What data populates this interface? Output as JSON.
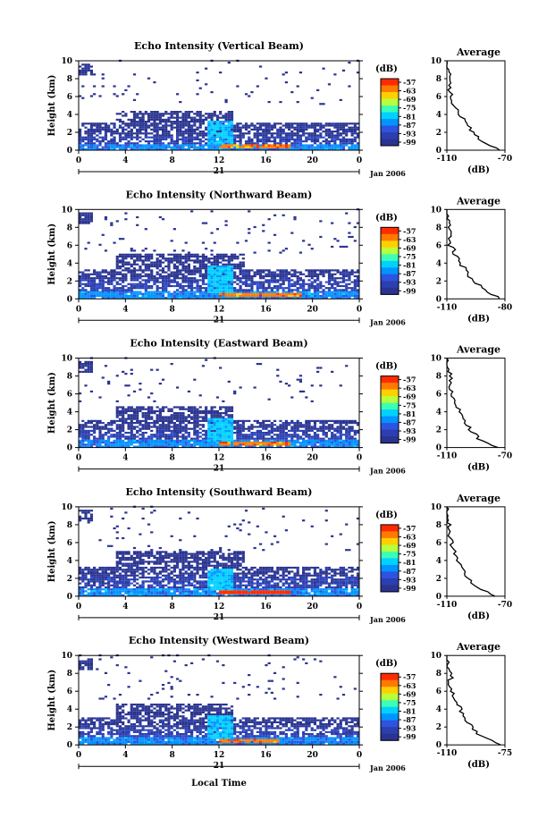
{
  "colorbar": {
    "unit_label": "(dB)",
    "ticks": [
      "-57",
      "-63",
      "-69",
      "-75",
      "-81",
      "-87",
      "-93",
      "-99"
    ],
    "colors": [
      "#ff2b00",
      "#ff7a00",
      "#ffd000",
      "#b8ff3c",
      "#3cffb4",
      "#00d2ff",
      "#0094ff",
      "#2f52e0",
      "#2b3fb0",
      "#2a3490"
    ]
  },
  "x_axis": {
    "ticks": [
      "0",
      "4",
      "8",
      "12",
      "16",
      "20",
      "0"
    ],
    "day_label": "21",
    "date_label": "Jan 2006",
    "bottom_label": "Local Time"
  },
  "y_axis": {
    "label": "Height (km)",
    "ticks": [
      "0",
      "2",
      "4",
      "6",
      "8",
      "10"
    ]
  },
  "chart_data": [
    {
      "type": "heatmap",
      "title": "Echo Intensity (Vertical Beam)",
      "xlabel": "",
      "ylabel": "Height (km)",
      "xlim": [
        0,
        24
      ],
      "ylim": [
        0,
        10
      ],
      "layers": [
        {
          "y0": 0,
          "y1": 0.6,
          "x0": 0,
          "x1": 24,
          "db": -85
        },
        {
          "y0": 0.6,
          "y1": 1.5,
          "x0": 0,
          "x1": 24,
          "db": -93
        },
        {
          "y0": 1.5,
          "y1": 3.0,
          "x0": 0,
          "x1": 24,
          "db": -97
        },
        {
          "y0": 3.0,
          "y1": 4.2,
          "x0": 3,
          "x1": 13,
          "db": -98
        },
        {
          "y0": 0.5,
          "y1": 3.2,
          "x0": 11,
          "x1": 13,
          "db": -81
        },
        {
          "y0": 0.2,
          "y1": 0.5,
          "x0": 12,
          "x1": 18,
          "db": -63
        }
      ],
      "average": {
        "xlim": [
          -110,
          -70
        ],
        "xticks": [
          "-110",
          "-70"
        ],
        "xlabel": "(dB)",
        "title": "Average",
        "profile": [
          [
            0,
            -74
          ],
          [
            1,
            -86
          ],
          [
            2,
            -92
          ],
          [
            3,
            -97
          ],
          [
            4,
            -101
          ],
          [
            5,
            -105
          ],
          [
            6,
            -107
          ],
          [
            7,
            -108
          ],
          [
            8,
            -107
          ],
          [
            9,
            -110
          ],
          [
            10,
            -110
          ]
        ]
      }
    },
    {
      "type": "heatmap",
      "title": "Echo Intensity (Northward Beam)",
      "xlabel": "",
      "ylabel": "Height (km)",
      "xlim": [
        0,
        24
      ],
      "ylim": [
        0,
        10
      ],
      "layers": [
        {
          "y0": 0,
          "y1": 0.8,
          "x0": 0,
          "x1": 24,
          "db": -85
        },
        {
          "y0": 0.8,
          "y1": 2.0,
          "x0": 0,
          "x1": 24,
          "db": -93
        },
        {
          "y0": 2.0,
          "y1": 3.2,
          "x0": 0,
          "x1": 24,
          "db": -97
        },
        {
          "y0": 3.2,
          "y1": 5.0,
          "x0": 3,
          "x1": 14,
          "db": -98
        },
        {
          "y0": 0.5,
          "y1": 3.6,
          "x0": 11,
          "x1": 13,
          "db": -81
        },
        {
          "y0": 0.2,
          "y1": 0.6,
          "x0": 12,
          "x1": 19,
          "db": -63
        }
      ],
      "average": {
        "xlim": [
          -110,
          -80
        ],
        "xticks": [
          "-110",
          "-80"
        ],
        "xlabel": "(dB)",
        "title": "Average",
        "profile": [
          [
            0,
            -82
          ],
          [
            1,
            -90
          ],
          [
            2,
            -96
          ],
          [
            3,
            -100
          ],
          [
            4,
            -103
          ],
          [
            5,
            -106
          ],
          [
            6,
            -108
          ],
          [
            7,
            -109
          ],
          [
            8,
            -108
          ],
          [
            9,
            -110
          ],
          [
            10,
            -110
          ]
        ]
      }
    },
    {
      "type": "heatmap",
      "title": "Echo Intensity (Eastward Beam)",
      "xlabel": "",
      "ylabel": "Height (km)",
      "xlim": [
        0,
        24
      ],
      "ylim": [
        0,
        10
      ],
      "layers": [
        {
          "y0": 0,
          "y1": 0.7,
          "x0": 0,
          "x1": 24,
          "db": -85
        },
        {
          "y0": 0.7,
          "y1": 1.8,
          "x0": 0,
          "x1": 24,
          "db": -93
        },
        {
          "y0": 1.8,
          "y1": 3.0,
          "x0": 0,
          "x1": 24,
          "db": -97
        },
        {
          "y0": 3.0,
          "y1": 4.5,
          "x0": 3,
          "x1": 13,
          "db": -98
        },
        {
          "y0": 0.5,
          "y1": 3.3,
          "x0": 11,
          "x1": 13,
          "db": -81
        },
        {
          "y0": 0.2,
          "y1": 0.5,
          "x0": 12,
          "x1": 18,
          "db": -63
        }
      ],
      "average": {
        "xlim": [
          -110,
          -70
        ],
        "xticks": [
          "-110",
          "-70"
        ],
        "xlabel": "(dB)",
        "title": "Average",
        "profile": [
          [
            0,
            -75
          ],
          [
            1,
            -88
          ],
          [
            2,
            -94
          ],
          [
            3,
            -98
          ],
          [
            4,
            -101
          ],
          [
            5,
            -104
          ],
          [
            6,
            -107
          ],
          [
            7,
            -108
          ],
          [
            8,
            -107
          ],
          [
            9,
            -110
          ],
          [
            10,
            -110
          ]
        ]
      }
    },
    {
      "type": "heatmap",
      "title": "Echo Intensity (Southward Beam)",
      "xlabel": "",
      "ylabel": "Height (km)",
      "xlim": [
        0,
        24
      ],
      "ylim": [
        0,
        10
      ],
      "layers": [
        {
          "y0": 0,
          "y1": 0.8,
          "x0": 0,
          "x1": 24,
          "db": -85
        },
        {
          "y0": 0.8,
          "y1": 2.0,
          "x0": 0,
          "x1": 24,
          "db": -93
        },
        {
          "y0": 2.0,
          "y1": 3.2,
          "x0": 0,
          "x1": 24,
          "db": -97
        },
        {
          "y0": 3.2,
          "y1": 5.0,
          "x0": 3,
          "x1": 14,
          "db": -98
        },
        {
          "y0": 0.5,
          "y1": 3.0,
          "x0": 11,
          "x1": 13,
          "db": -81
        },
        {
          "y0": 0.2,
          "y1": 0.6,
          "x0": 12,
          "x1": 18,
          "db": -57
        }
      ],
      "average": {
        "xlim": [
          -110,
          -70
        ],
        "xticks": [
          "-110",
          "-70"
        ],
        "xlabel": "(dB)",
        "title": "Average",
        "profile": [
          [
            0,
            -76
          ],
          [
            1,
            -89
          ],
          [
            2,
            -95
          ],
          [
            3,
            -99
          ],
          [
            4,
            -102
          ],
          [
            5,
            -105
          ],
          [
            6,
            -107
          ],
          [
            7,
            -108
          ],
          [
            8,
            -108
          ],
          [
            9,
            -110
          ],
          [
            10,
            -110
          ]
        ]
      }
    },
    {
      "type": "heatmap",
      "title": "Echo Intensity (Westward Beam)",
      "xlabel": "Local Time",
      "ylabel": "Height (km)",
      "xlim": [
        0,
        24
      ],
      "ylim": [
        0,
        10
      ],
      "layers": [
        {
          "y0": 0,
          "y1": 0.7,
          "x0": 0,
          "x1": 24,
          "db": -85
        },
        {
          "y0": 0.7,
          "y1": 1.8,
          "x0": 0,
          "x1": 24,
          "db": -93
        },
        {
          "y0": 1.8,
          "y1": 3.0,
          "x0": 0,
          "x1": 24,
          "db": -97
        },
        {
          "y0": 3.0,
          "y1": 4.6,
          "x0": 3,
          "x1": 13,
          "db": -98
        },
        {
          "y0": 0.5,
          "y1": 3.2,
          "x0": 11,
          "x1": 13,
          "db": -81
        },
        {
          "y0": 0.2,
          "y1": 0.5,
          "x0": 12,
          "x1": 17,
          "db": -63
        }
      ],
      "average": {
        "xlim": [
          -110,
          -75
        ],
        "xticks": [
          "-110",
          "-75"
        ],
        "xlabel": "(dB)",
        "title": "Average",
        "profile": [
          [
            0,
            -78
          ],
          [
            1,
            -90
          ],
          [
            2,
            -95
          ],
          [
            3,
            -99
          ],
          [
            4,
            -102
          ],
          [
            5,
            -104
          ],
          [
            6,
            -107
          ],
          [
            7,
            -108
          ],
          [
            8,
            -107
          ],
          [
            9,
            -110
          ],
          [
            10,
            -110
          ]
        ]
      }
    }
  ]
}
